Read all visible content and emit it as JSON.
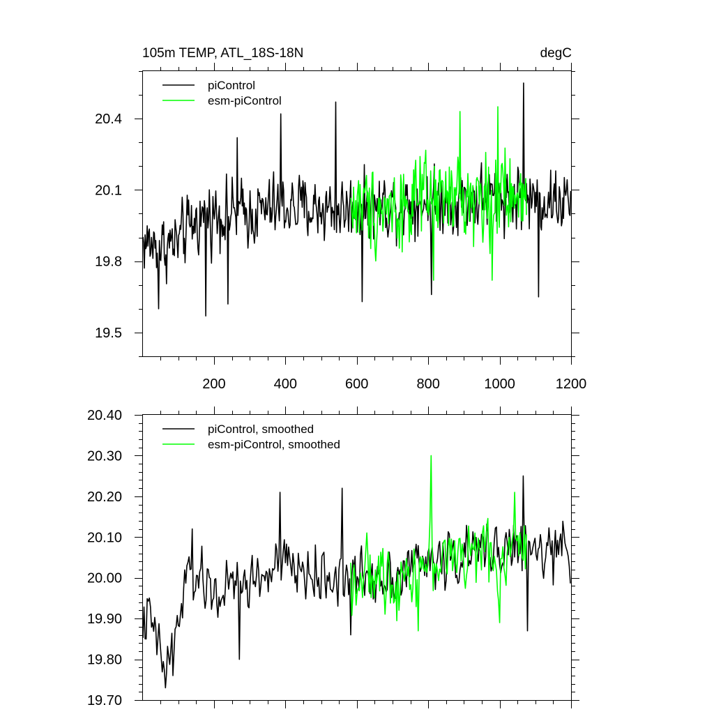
{
  "chart_data": [
    {
      "type": "line",
      "title": "105m TEMP, ATL_18S-18N",
      "units": "degC",
      "xlim": [
        1,
        1200
      ],
      "ylim": [
        19.4,
        20.6
      ],
      "xticks": [
        200,
        400,
        600,
        800,
        1000,
        1200
      ],
      "xtick_labels": [
        "200",
        "400",
        "600",
        "800",
        "1000",
        "1200"
      ],
      "yticks": [
        19.5,
        19.8,
        20.1,
        20.4
      ],
      "ytick_labels": [
        "19.5",
        "19.8",
        "20.1",
        "20.4"
      ],
      "legend": "top-left",
      "series": [
        {
          "name": "piControl",
          "color": "#000000",
          "x_start": 1,
          "x_end": 1200,
          "step": 2,
          "anchor_x": [
            1,
            50,
            100,
            150,
            200,
            300,
            400,
            500,
            600,
            700,
            800,
            900,
            1000,
            1100,
            1200
          ],
          "anchor_mean": [
            19.88,
            19.86,
            19.88,
            19.97,
            20.0,
            20.0,
            20.03,
            20.02,
            20.02,
            20.04,
            20.05,
            20.06,
            20.08,
            20.06,
            20.05
          ],
          "amplitude": 0.1,
          "peaks": [
            [
              388,
              20.42
            ],
            [
              541,
              20.47
            ],
            [
              1067,
              20.55
            ],
            [
              265,
              20.32
            ]
          ],
          "troughs": [
            [
              177,
              19.57
            ],
            [
              240,
              19.62
            ],
            [
              616,
              19.63
            ],
            [
              809,
              19.66
            ],
            [
              1109,
              19.65
            ],
            [
              45,
              19.6
            ]
          ]
        },
        {
          "name": "esm-piControl",
          "color": "#00ff00",
          "x_start": 583,
          "x_end": 1075,
          "step": 2,
          "anchor_x": [
            583,
            700,
            800,
            900,
            1000,
            1075
          ],
          "anchor_mean": [
            20.03,
            20.03,
            20.05,
            20.07,
            20.06,
            20.05
          ],
          "amplitude": 0.13,
          "peaks": [
            [
              890,
              20.43
            ],
            [
              995,
              20.45
            ]
          ],
          "troughs": [
            [
              816,
              19.72
            ],
            [
              980,
              19.72
            ]
          ]
        }
      ]
    },
    {
      "type": "line",
      "title": "",
      "xlim": [
        1,
        1200
      ],
      "ylim": [
        19.7,
        20.4
      ],
      "xticks": [
        200,
        400,
        600,
        800,
        1000,
        1200
      ],
      "yticks": [
        19.7,
        19.8,
        19.9,
        20.0,
        20.1,
        20.2,
        20.3,
        20.4
      ],
      "ytick_labels": [
        "19.70",
        "19.80",
        "19.90",
        "20.00",
        "20.10",
        "20.20",
        "20.30",
        "20.40"
      ],
      "legend": "top-left",
      "series": [
        {
          "name": "piControl, smoothed",
          "color": "#000000",
          "x_start": 1,
          "x_end": 1200,
          "step": 3,
          "anchor_x": [
            1,
            20,
            40,
            60,
            70,
            100,
            120,
            150,
            200,
            300,
            400,
            500,
            600,
            700,
            800,
            900,
            1000,
            1100,
            1200
          ],
          "anchor_mean": [
            19.89,
            19.9,
            19.84,
            19.78,
            19.79,
            19.88,
            19.99,
            20.0,
            19.96,
            19.99,
            20.03,
            20.0,
            20.0,
            20.01,
            20.04,
            20.05,
            20.08,
            20.06,
            20.06
          ],
          "amplitude": 0.05,
          "peaks": [
            [
              385,
              20.21
            ],
            [
              560,
              20.22
            ],
            [
              1066,
              20.25
            ],
            [
              140,
              20.12
            ]
          ],
          "troughs": [
            [
              63,
              19.73
            ],
            [
              86,
              19.76
            ],
            [
              584,
              19.86
            ],
            [
              1079,
              19.87
            ],
            [
              272,
              19.8
            ]
          ]
        },
        {
          "name": "esm-piControl, smoothed",
          "color": "#00ff00",
          "x_start": 583,
          "x_end": 1075,
          "step": 3,
          "anchor_x": [
            583,
            700,
            800,
            900,
            1000,
            1075
          ],
          "anchor_mean": [
            20.0,
            20.0,
            20.04,
            20.06,
            20.05,
            20.08
          ],
          "amplitude": 0.06,
          "peaks": [
            [
              808,
              20.3
            ],
            [
              1043,
              20.21
            ]
          ],
          "troughs": [
            [
              773,
              19.87
            ],
            [
              1000,
              19.89
            ]
          ]
        }
      ]
    }
  ]
}
